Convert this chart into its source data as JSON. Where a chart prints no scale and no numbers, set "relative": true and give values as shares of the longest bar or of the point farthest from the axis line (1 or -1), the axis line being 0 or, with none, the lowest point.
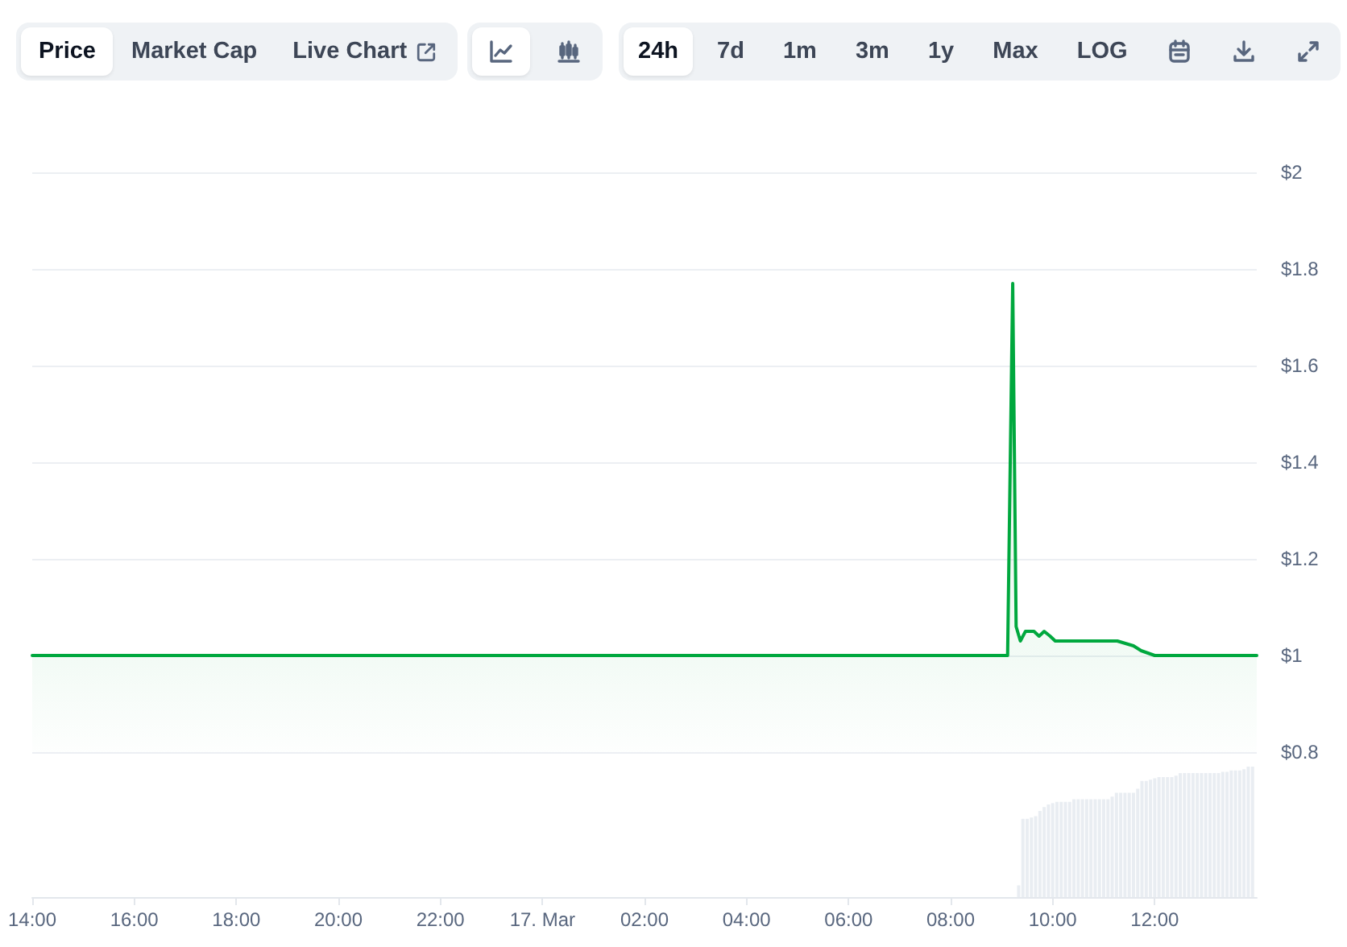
{
  "chart_data": [
    {
      "type": "area",
      "color": "#00a83e",
      "x": [
        "--03-16T14:00",
        "--03-16T16:00",
        "--03-16T18:00",
        "--03-16T20:00",
        "--03-16T22:00",
        "--03-17T00:00",
        "--03-17T02:00",
        "--03-17T04:00",
        "--03-17T06:00",
        "--03-17T08:00",
        "--03-17T09:07",
        "--03-17T09:13",
        "--03-17T09:17",
        "--03-17T09:22",
        "--03-17T09:28",
        "--03-17T09:38",
        "--03-17T09:44",
        "--03-17T09:50",
        "--03-17T09:57",
        "--03-17T10:03",
        "--03-17T10:19",
        "--03-17T10:44",
        "--03-17T11:03",
        "--03-17T11:16",
        "--03-17T11:35",
        "--03-17T11:44",
        "--03-17T12:00",
        "--03-17T12:25",
        "--03-17T12:57",
        "--03-17T13:28",
        "--03-17T13:47",
        "--03-17T14:00"
      ],
      "values": [
        1.0,
        1.0,
        1.0,
        1.0,
        1.0,
        1.0,
        1.0,
        1.0,
        1.0,
        1.0,
        1.0,
        1.77,
        1.06,
        1.03,
        1.05,
        1.05,
        1.04,
        1.05,
        1.04,
        1.03,
        1.03,
        1.03,
        1.03,
        1.03,
        1.02,
        1.01,
        1.0,
        1.0,
        1.0,
        1.0,
        1.0,
        1.0
      ],
      "xlim": [
        "--03-16T14:00",
        "--03-17T14:00"
      ],
      "ylim": [
        0.8,
        2
      ],
      "yticks": [
        {
          "value": 0.8,
          "label": "$0.8"
        },
        {
          "value": 1,
          "label": "$1"
        },
        {
          "value": 1.2,
          "label": "$1.2"
        },
        {
          "value": 1.4,
          "label": "$1.4"
        },
        {
          "value": 1.6,
          "label": "$1.6"
        },
        {
          "value": 1.8,
          "label": "$1.8"
        },
        {
          "value": 2,
          "label": "$2"
        }
      ],
      "grid": "y",
      "tick_labels": "y",
      "annotations": [
        "Price",
        "Market Cap",
        "Live Chart",
        "24h",
        "7d",
        "1m",
        "3m",
        "1y",
        "Max",
        "LOG"
      ]
    },
    {
      "type": "bar",
      "relative": true,
      "color": "#e9edf2",
      "x": [
        "--03-17T09:20",
        "--03-17T09:25",
        "--03-17T09:30",
        "--03-17T09:35",
        "--03-17T09:40",
        "--03-17T09:45",
        "--03-17T09:50",
        "--03-17T09:55",
        "--03-17T10:00",
        "--03-17T10:05",
        "--03-17T10:10",
        "--03-17T10:15",
        "--03-17T10:20",
        "--03-17T10:25",
        "--03-17T10:30",
        "--03-17T10:35",
        "--03-17T10:40",
        "--03-17T10:45",
        "--03-17T10:50",
        "--03-17T10:55",
        "--03-17T11:00",
        "--03-17T11:05",
        "--03-17T11:10",
        "--03-17T11:15",
        "--03-17T11:20",
        "--03-17T11:25",
        "--03-17T11:30",
        "--03-17T11:35",
        "--03-17T11:40",
        "--03-17T11:45",
        "--03-17T11:50",
        "--03-17T11:55",
        "--03-17T12:00",
        "--03-17T12:05",
        "--03-17T12:10",
        "--03-17T12:15",
        "--03-17T12:20",
        "--03-17T12:25",
        "--03-17T12:30",
        "--03-17T12:35",
        "--03-17T12:40",
        "--03-17T12:45",
        "--03-17T12:50",
        "--03-17T12:55",
        "--03-17T13:00",
        "--03-17T13:05",
        "--03-17T13:10",
        "--03-17T13:15",
        "--03-17T13:20",
        "--03-17T13:25",
        "--03-17T13:30",
        "--03-17T13:35",
        "--03-17T13:40",
        "--03-17T13:45",
        "--03-17T13:50",
        "--03-17T13:55"
      ],
      "values": [
        0.09,
        0.6,
        0.6,
        0.61,
        0.62,
        0.66,
        0.69,
        0.71,
        0.72,
        0.73,
        0.73,
        0.73,
        0.73,
        0.75,
        0.75,
        0.75,
        0.75,
        0.75,
        0.75,
        0.75,
        0.75,
        0.75,
        0.77,
        0.8,
        0.8,
        0.8,
        0.8,
        0.8,
        0.83,
        0.89,
        0.89,
        0.9,
        0.91,
        0.92,
        0.92,
        0.92,
        0.92,
        0.93,
        0.95,
        0.95,
        0.95,
        0.95,
        0.95,
        0.95,
        0.95,
        0.95,
        0.95,
        0.95,
        0.96,
        0.96,
        0.97,
        0.97,
        0.97,
        0.98,
        1,
        1
      ],
      "xlim": [
        "--03-16T14:00",
        "--03-17T14:00"
      ],
      "xticks": [
        {
          "value": "--03-16T14:00",
          "label": "14:00"
        },
        {
          "value": "--03-16T16:00",
          "label": "16:00"
        },
        {
          "value": "--03-16T18:00",
          "label": "18:00"
        },
        {
          "value": "--03-16T20:00",
          "label": "20:00"
        },
        {
          "value": "--03-16T22:00",
          "label": "22:00"
        },
        {
          "value": "--03-17T00:00",
          "label": "17. Mar"
        },
        {
          "value": "--03-17T02:00",
          "label": "02:00"
        },
        {
          "value": "--03-17T04:00",
          "label": "04:00"
        },
        {
          "value": "--03-17T06:00",
          "label": "06:00"
        },
        {
          "value": "--03-17T08:00",
          "label": "08:00"
        },
        {
          "value": "--03-17T10:00",
          "label": "10:00"
        },
        {
          "value": "--03-17T12:00",
          "label": "12:00"
        }
      ],
      "tick_labels": "x"
    }
  ]
}
